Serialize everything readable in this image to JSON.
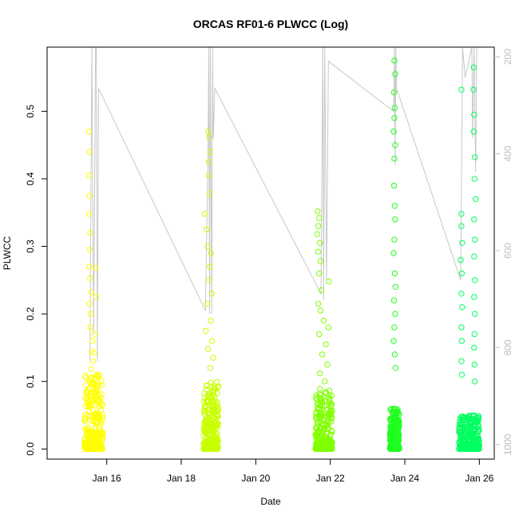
{
  "chart_data": {
    "type": "scatter",
    "title": "ORCAS RF01-6 PLWCC (Log)",
    "xlabel": "Date",
    "ylabel": "PLWCC",
    "x_ticks": [
      "Jan 16",
      "Jan 18",
      "Jan 20",
      "Jan 22",
      "Jan 24",
      "Jan 26"
    ],
    "x_tick_values": [
      16,
      18,
      20,
      22,
      24,
      26
    ],
    "xlim": [
      14.4,
      26.4
    ],
    "ylim": [
      -0.015,
      0.595
    ],
    "y_ticks": [
      0.0,
      0.1,
      0.2,
      0.3,
      0.4,
      0.5
    ],
    "y_tick_labels": [
      "0.0",
      "0.1",
      "0.2",
      "0.3",
      "0.4",
      "0.5"
    ],
    "right_axis": {
      "label": "",
      "ticks": [
        200,
        400,
        600,
        800,
        1000
      ],
      "tick_labels": [
        "200",
        "400",
        "600",
        "800",
        "1000"
      ],
      "lim_top": 180,
      "lim_bottom": 1030,
      "inverted": true,
      "color": "#bdbdbd"
    },
    "line_series": {
      "name": "",
      "color": "#c8c8c8",
      "points": [
        [
          15.55,
          0.13
        ],
        [
          15.6,
          0.595
        ],
        [
          15.65,
          0.17
        ],
        [
          15.7,
          0.595
        ],
        [
          15.72,
          0.595
        ],
        [
          15.75,
          0.13
        ],
        [
          15.78,
          0.534
        ],
        [
          18.65,
          0.205
        ],
        [
          18.72,
          0.45
        ],
        [
          18.74,
          0.595
        ],
        [
          18.76,
          0.2
        ],
        [
          18.78,
          0.595
        ],
        [
          18.82,
          0.2
        ],
        [
          18.84,
          0.595
        ],
        [
          18.86,
          0.46
        ],
        [
          18.9,
          0.534
        ],
        [
          21.75,
          0.23
        ],
        [
          21.8,
          0.595
        ],
        [
          21.82,
          0.22
        ],
        [
          21.85,
          0.595
        ],
        [
          21.9,
          0.25
        ],
        [
          21.95,
          0.574
        ],
        [
          23.7,
          0.5
        ],
        [
          23.72,
          0.595
        ],
        [
          23.74,
          0.42
        ],
        [
          23.76,
          0.595
        ],
        [
          23.78,
          0.534
        ],
        [
          25.5,
          0.25
        ],
        [
          25.55,
          0.595
        ],
        [
          25.62,
          0.55
        ],
        [
          25.8,
          0.595
        ],
        [
          25.82,
          0.46
        ],
        [
          25.86,
          0.595
        ],
        [
          25.9,
          0.41
        ],
        [
          25.93,
          0.595
        ]
      ]
    },
    "series": [
      {
        "name": "",
        "color": "#ffff00",
        "x_range": [
          15.4,
          15.9
        ],
        "points": [
          [
            15.52,
            0.47
          ],
          [
            15.54,
            0.44
          ],
          [
            15.52,
            0.405
          ],
          [
            15.54,
            0.375
          ],
          [
            15.53,
            0.348
          ],
          [
            15.55,
            0.32
          ],
          [
            15.54,
            0.295
          ],
          [
            15.53,
            0.27
          ],
          [
            15.55,
            0.253
          ],
          [
            15.58,
            0.232
          ],
          [
            15.54,
            0.215
          ],
          [
            15.57,
            0.2
          ],
          [
            15.56,
            0.18
          ],
          [
            15.62,
            0.16
          ],
          [
            15.6,
            0.145
          ],
          [
            15.63,
            0.13
          ],
          [
            15.58,
            0.118
          ],
          [
            15.7,
            0.268
          ],
          [
            15.72,
            0.225
          ],
          [
            15.68,
            0.17
          ],
          [
            15.66,
            0.142
          ],
          [
            15.74,
            0.11
          ],
          [
            15.78,
            0.095
          ]
        ],
        "dense_max": 0.11
      },
      {
        "name": "",
        "color": "#c8ff00",
        "x_range": [
          18.6,
          19.0
        ],
        "points": [
          [
            18.63,
            0.348
          ],
          [
            18.68,
            0.325
          ],
          [
            18.72,
            0.47
          ],
          [
            18.75,
            0.462
          ],
          [
            18.74,
            0.425
          ],
          [
            18.78,
            0.44
          ],
          [
            18.73,
            0.405
          ],
          [
            18.76,
            0.378
          ],
          [
            18.71,
            0.3
          ],
          [
            18.8,
            0.29
          ],
          [
            18.77,
            0.27
          ],
          [
            18.74,
            0.25
          ],
          [
            18.82,
            0.23
          ],
          [
            18.7,
            0.215
          ],
          [
            18.79,
            0.19
          ],
          [
            18.66,
            0.175
          ],
          [
            18.83,
            0.16
          ],
          [
            18.72,
            0.148
          ],
          [
            18.86,
            0.135
          ],
          [
            18.78,
            0.12
          ]
        ],
        "dense_max": 0.1
      },
      {
        "name": "",
        "color": "#80ff00",
        "x_range": [
          21.6,
          22.05
        ],
        "points": [
          [
            21.66,
            0.352
          ],
          [
            21.7,
            0.342
          ],
          [
            21.68,
            0.33
          ],
          [
            21.65,
            0.318
          ],
          [
            21.72,
            0.305
          ],
          [
            21.67,
            0.292
          ],
          [
            21.74,
            0.278
          ],
          [
            21.7,
            0.26
          ],
          [
            21.76,
            0.235
          ],
          [
            21.68,
            0.215
          ],
          [
            21.96,
            0.248
          ],
          [
            21.74,
            0.205
          ],
          [
            21.82,
            0.19
          ],
          [
            21.95,
            0.18
          ],
          [
            21.7,
            0.17
          ],
          [
            21.88,
            0.155
          ],
          [
            21.78,
            0.14
          ],
          [
            21.92,
            0.125
          ],
          [
            21.72,
            0.112
          ],
          [
            21.85,
            0.1
          ]
        ],
        "dense_max": 0.09
      },
      {
        "name": "",
        "color": "#20ff20",
        "x_range": [
          23.6,
          23.85
        ],
        "points": [
          [
            23.72,
            0.575
          ],
          [
            23.74,
            0.555
          ],
          [
            23.71,
            0.528
          ],
          [
            23.73,
            0.505
          ],
          [
            23.72,
            0.49
          ],
          [
            23.7,
            0.47
          ],
          [
            23.74,
            0.45
          ],
          [
            23.72,
            0.43
          ],
          [
            23.71,
            0.39
          ],
          [
            23.73,
            0.36
          ],
          [
            23.74,
            0.34
          ],
          [
            23.72,
            0.31
          ],
          [
            23.7,
            0.29
          ],
          [
            23.73,
            0.26
          ],
          [
            23.75,
            0.24
          ],
          [
            23.71,
            0.22
          ],
          [
            23.74,
            0.2
          ],
          [
            23.72,
            0.18
          ],
          [
            23.7,
            0.16
          ],
          [
            23.73,
            0.14
          ],
          [
            23.75,
            0.12
          ]
        ],
        "dense_max": 0.06
      },
      {
        "name": "",
        "color": "#00ff60",
        "x_range": [
          25.45,
          26.0
        ],
        "points": [
          [
            25.52,
            0.532
          ],
          [
            25.85,
            0.565
          ],
          [
            25.84,
            0.532
          ],
          [
            25.86,
            0.495
          ],
          [
            25.85,
            0.47
          ],
          [
            25.88,
            0.432
          ],
          [
            25.87,
            0.4
          ],
          [
            25.9,
            0.37
          ],
          [
            25.52,
            0.348
          ],
          [
            25.86,
            0.34
          ],
          [
            25.52,
            0.33
          ],
          [
            25.54,
            0.305
          ],
          [
            25.88,
            0.31
          ],
          [
            25.5,
            0.28
          ],
          [
            25.86,
            0.285
          ],
          [
            25.53,
            0.26
          ],
          [
            25.88,
            0.25
          ],
          [
            25.52,
            0.23
          ],
          [
            25.86,
            0.225
          ],
          [
            25.54,
            0.21
          ],
          [
            25.88,
            0.2
          ],
          [
            25.52,
            0.18
          ],
          [
            25.87,
            0.17
          ],
          [
            25.53,
            0.16
          ],
          [
            25.86,
            0.15
          ],
          [
            25.52,
            0.13
          ],
          [
            25.87,
            0.125
          ],
          [
            25.53,
            0.11
          ],
          [
            25.88,
            0.1
          ]
        ],
        "dense_max": 0.05
      }
    ]
  }
}
